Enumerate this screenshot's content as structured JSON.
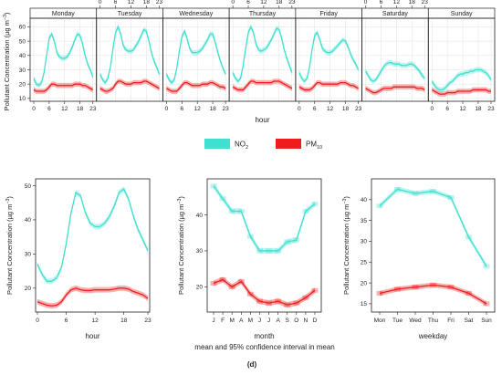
{
  "figure": {
    "panel_label": "(d)",
    "legend": {
      "entries": [
        {
          "name": "NO",
          "sub": "2",
          "color": "#40e0d0"
        },
        {
          "name": "PM",
          "sub": "10",
          "color": "#ee1c1c"
        }
      ]
    },
    "ylabel": {
      "main": "Pollutant Concentration (µg m",
      "sup": "−3",
      "tail": ")"
    },
    "caption": "mean and 95% confidence interval in mean"
  },
  "chart_data": [
    {
      "type": "line",
      "id": "weekly-hourly",
      "panels": [
        "Monday",
        "Tuesday",
        "Wednesday",
        "Thursday",
        "Friday",
        "Saturday",
        "Sunday"
      ],
      "xlabel": "hour",
      "x_ticks": [
        0,
        6,
        12,
        18,
        23
      ],
      "xlim": [
        0,
        23
      ],
      "ylim": [
        8,
        66
      ],
      "y_ticks": [
        10,
        20,
        30,
        40,
        50,
        60
      ],
      "ci": 1.8,
      "series": [
        {
          "name": "NO2",
          "color": "#40e0d0",
          "values": [
            [
              24,
              20,
              19,
              21,
              28,
              40,
              52,
              55,
              50,
              42,
              39,
              38,
              38,
              39,
              42,
              46,
              51,
              55,
              54,
              48,
              40,
              34,
              30,
              25
            ],
            [
              27,
              23,
              21,
              24,
              32,
              45,
              56,
              60,
              55,
              47,
              44,
              43,
              43,
              44,
              47,
              50,
              54,
              58,
              57,
              50,
              42,
              36,
              32,
              27
            ],
            [
              27,
              23,
              21,
              23,
              31,
              43,
              53,
              57,
              52,
              45,
              42,
              42,
              42,
              43,
              45,
              48,
              51,
              55,
              55,
              49,
              42,
              36,
              31,
              27
            ],
            [
              28,
              24,
              22,
              24,
              33,
              45,
              56,
              60,
              56,
              48,
              44,
              43,
              44,
              45,
              48,
              51,
              55,
              59,
              58,
              52,
              44,
              38,
              33,
              28
            ],
            [
              28,
              24,
              22,
              24,
              32,
              44,
              54,
              56,
              51,
              45,
              43,
              42,
              42,
              43,
              45,
              47,
              49,
              51,
              50,
              46,
              41,
              37,
              34,
              30
            ],
            [
              29,
              26,
              23,
              22,
              23,
              26,
              29,
              32,
              34,
              35,
              35,
              34,
              34,
              34,
              33,
              33,
              33,
              34,
              34,
              33,
              31,
              29,
              26,
              24
            ],
            [
              22,
              19,
              17,
              16,
              16,
              17,
              19,
              21,
              22,
              24,
              26,
              27,
              27,
              28,
              28,
              29,
              29,
              30,
              30,
              30,
              29,
              28,
              26,
              23
            ]
          ]
        },
        {
          "name": "PM10",
          "color": "#ee1c1c",
          "values": [
            [
              16,
              15,
              15,
              15,
              15,
              16,
              18,
              20,
              20,
              19,
              19,
              19,
              19,
              19,
              19,
              19,
              20,
              20,
              20,
              19,
              19,
              18,
              17,
              16
            ],
            [
              17,
              16,
              15,
              15,
              16,
              17,
              20,
              22,
              22,
              21,
              20,
              20,
              20,
              21,
              21,
              21,
              21,
              22,
              22,
              21,
              20,
              19,
              18,
              17
            ],
            [
              17,
              16,
              15,
              15,
              15,
              17,
              19,
              21,
              21,
              20,
              19,
              19,
              19,
              19,
              20,
              20,
              20,
              21,
              21,
              20,
              19,
              18,
              18,
              17
            ],
            [
              18,
              17,
              16,
              16,
              16,
              18,
              20,
              22,
              22,
              21,
              21,
              21,
              21,
              21,
              21,
              21,
              22,
              22,
              22,
              21,
              20,
              19,
              18,
              17
            ],
            [
              18,
              17,
              16,
              16,
              16,
              17,
              19,
              21,
              21,
              20,
              20,
              20,
              20,
              20,
              20,
              20,
              21,
              21,
              21,
              20,
              19,
              19,
              18,
              17
            ],
            [
              17,
              16,
              15,
              14,
              14,
              15,
              16,
              17,
              17,
              17,
              17,
              18,
              18,
              18,
              18,
              18,
              18,
              18,
              18,
              18,
              17,
              17,
              17,
              16
            ],
            [
              16,
              15,
              14,
              13,
              13,
              13,
              14,
              14,
              14,
              14,
              15,
              15,
              15,
              15,
              15,
              15,
              16,
              16,
              16,
              16,
              16,
              16,
              15,
              15
            ]
          ]
        }
      ]
    },
    {
      "type": "line",
      "id": "hour",
      "xlabel": "hour",
      "x": [
        0,
        1,
        2,
        3,
        4,
        5,
        6,
        7,
        8,
        9,
        10,
        11,
        12,
        13,
        14,
        15,
        16,
        17,
        18,
        19,
        20,
        21,
        22,
        23
      ],
      "x_ticks": [
        0,
        6,
        12,
        18,
        23
      ],
      "xlim": [
        0,
        23
      ],
      "ylim": [
        13,
        52
      ],
      "y_ticks": [
        20,
        30,
        40,
        50
      ],
      "ci": 0.8,
      "series": [
        {
          "name": "NO2",
          "color": "#40e0d0",
          "values": [
            27,
            24,
            22,
            22,
            23,
            26,
            33,
            42,
            48,
            47,
            42,
            39,
            38,
            38,
            39,
            41,
            44,
            48,
            49,
            46,
            41,
            37,
            34,
            31
          ]
        },
        {
          "name": "PM10",
          "color": "#ee1c1c",
          "values": [
            16,
            15.5,
            15,
            14.8,
            15,
            16,
            18,
            19.5,
            20,
            19.5,
            19.3,
            19.3,
            19.5,
            19.5,
            19.5,
            19.5,
            19.7,
            20,
            20,
            19.7,
            19,
            18.5,
            18,
            17
          ]
        }
      ]
    },
    {
      "type": "line",
      "id": "month",
      "xlabel": "month",
      "categories": [
        "J",
        "F",
        "M",
        "A",
        "M",
        "J",
        "J",
        "A",
        "S",
        "O",
        "N",
        "D"
      ],
      "ylim": [
        13,
        50
      ],
      "y_ticks": [
        20,
        30,
        40
      ],
      "ci": 0.8,
      "series": [
        {
          "name": "NO2",
          "color": "#40e0d0",
          "values": [
            48,
            44.5,
            41,
            41,
            34,
            30,
            30,
            30,
            32.5,
            33,
            41,
            43
          ]
        },
        {
          "name": "PM10",
          "color": "#ee1c1c",
          "values": [
            21,
            22,
            20,
            21.5,
            18,
            16,
            15.5,
            16,
            15,
            15.5,
            17,
            19
          ]
        }
      ]
    },
    {
      "type": "line",
      "id": "weekday",
      "xlabel": "weekday",
      "categories": [
        "Mon",
        "Tue",
        "Wed",
        "Thu",
        "Fri",
        "Sat",
        "Sun"
      ],
      "ylim": [
        13,
        45
      ],
      "y_ticks": [
        15,
        20,
        25,
        30,
        35,
        40
      ],
      "ci": 0.6,
      "series": [
        {
          "name": "NO2",
          "color": "#40e0d0",
          "values": [
            38.5,
            42.5,
            41.5,
            42,
            40.5,
            31,
            24
          ]
        },
        {
          "name": "PM10",
          "color": "#ee1c1c",
          "values": [
            17.5,
            18.5,
            19,
            19.5,
            19,
            17.5,
            15
          ]
        }
      ]
    }
  ]
}
